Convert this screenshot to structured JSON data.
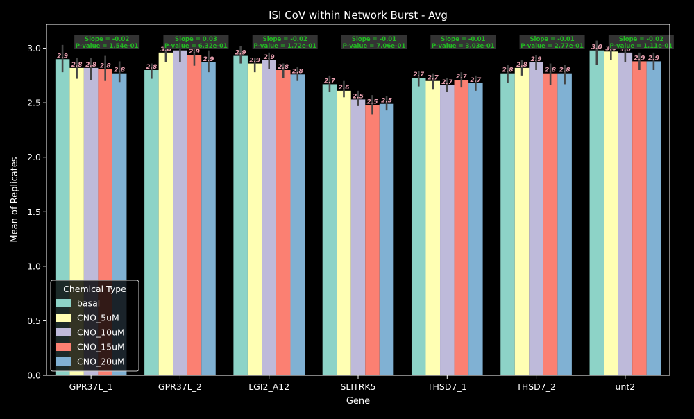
{
  "chart_data": {
    "type": "bar",
    "title": "ISI CoV within Network Burst - Avg",
    "xlabel": "Gene",
    "ylabel": "Mean of Replicates",
    "ylim": [
      0,
      3.22
    ],
    "yticks": [
      0.0,
      0.5,
      1.0,
      1.5,
      2.0,
      2.5,
      3.0
    ],
    "ytick_labels": [
      "0.0",
      "0.5",
      "1.0",
      "1.5",
      "2.0",
      "2.5",
      "3.0"
    ],
    "categories": [
      "GPR37L_1",
      "GPR37L_2",
      "LGI2_A12",
      "SLITRK5",
      "THSD7_1",
      "THSD7_2",
      "unt2"
    ],
    "grid": false,
    "legend": {
      "title": "Chemical Type",
      "placement": "lower-left"
    },
    "series": [
      {
        "name": "basal",
        "color": "#8dd3c7",
        "values": [
          2.9,
          2.8,
          2.93,
          2.67,
          2.73,
          2.77,
          2.98
        ],
        "errors": [
          [
            2.78,
            3.03
          ],
          [
            2.72,
            2.86
          ],
          [
            2.86,
            3.02
          ],
          [
            2.6,
            2.75
          ],
          [
            2.65,
            2.79
          ],
          [
            2.68,
            2.85
          ],
          [
            2.85,
            3.07
          ]
        ],
        "bar_labels": [
          "2.9",
          "2.8",
          "2.9",
          "2.7",
          "2.7",
          "2.8",
          "3.0"
        ]
      },
      {
        "name": "CNO_5uM",
        "color": "#ffffb3",
        "values": [
          2.82,
          2.96,
          2.86,
          2.61,
          2.7,
          2.82,
          2.97
        ],
        "errors": [
          [
            2.72,
            2.91
          ],
          [
            2.87,
            3.04
          ],
          [
            2.78,
            2.91
          ],
          [
            2.55,
            2.7
          ],
          [
            2.62,
            2.77
          ],
          [
            2.75,
            2.89
          ],
          [
            2.89,
            3.04
          ]
        ],
        "bar_labels": [
          "2.8",
          "3.0",
          "2.9",
          "2.6",
          "2.7",
          "2.8",
          "3.0"
        ]
      },
      {
        "name": "CNO_10uM",
        "color": "#bebada",
        "values": [
          2.82,
          2.98,
          2.89,
          2.53,
          2.66,
          2.87,
          2.96
        ],
        "errors": [
          [
            2.71,
            2.91
          ],
          [
            2.87,
            3.07
          ],
          [
            2.81,
            2.96
          ],
          [
            2.47,
            2.61
          ],
          [
            2.6,
            2.73
          ],
          [
            2.8,
            2.94
          ],
          [
            2.87,
            3.04
          ]
        ],
        "bar_labels": [
          "2.8",
          "3.0",
          "2.9",
          "2.5",
          "2.7",
          "2.9",
          "3.0"
        ]
      },
      {
        "name": "CNO_15uM",
        "color": "#fb8072",
        "values": [
          2.81,
          2.94,
          2.8,
          2.48,
          2.71,
          2.77,
          2.88
        ],
        "errors": [
          [
            2.7,
            2.93
          ],
          [
            2.84,
            3.02
          ],
          [
            2.73,
            2.86
          ],
          [
            2.39,
            2.57
          ],
          [
            2.64,
            2.78
          ],
          [
            2.66,
            2.86
          ],
          [
            2.8,
            2.96
          ]
        ],
        "bar_labels": [
          "2.8",
          "2.9",
          "2.8",
          "2.5",
          "2.7",
          "2.8",
          "2.9"
        ]
      },
      {
        "name": "CNO_20uM",
        "color": "#80b1d3",
        "values": [
          2.77,
          2.87,
          2.76,
          2.49,
          2.68,
          2.77,
          2.88
        ],
        "errors": [
          [
            2.69,
            2.88
          ],
          [
            2.78,
            2.98
          ],
          [
            2.7,
            2.83
          ],
          [
            2.43,
            2.56
          ],
          [
            2.61,
            2.75
          ],
          [
            2.67,
            2.85
          ],
          [
            2.8,
            2.96
          ]
        ],
        "bar_labels": [
          "2.8",
          "2.9",
          "2.8",
          "2.5",
          "2.7",
          "2.8",
          "2.9"
        ]
      }
    ],
    "annotations": [
      {
        "category": "GPR37L_1",
        "line1": "Slope = -0.02",
        "line2": "P-value = 1.54e-01"
      },
      {
        "category": "GPR37L_2",
        "line1": "Slope = 0.03",
        "line2": "P-value = 6.32e-01"
      },
      {
        "category": "LGI2_A12",
        "line1": "Slope = -0.02",
        "line2": "P-value = 1.72e-01"
      },
      {
        "category": "SLITRK5",
        "line1": "Slope = -0.01",
        "line2": "P-value = 7.06e-01"
      },
      {
        "category": "THSD7_1",
        "line1": "Slope = -0.01",
        "line2": "P-value = 3.03e-01"
      },
      {
        "category": "THSD7_2",
        "line1": "Slope = -0.01",
        "line2": "P-value = 2.77e-01"
      },
      {
        "category": "unt2",
        "line1": "Slope = -0.02",
        "line2": "P-value = 1.11e-01"
      }
    ]
  }
}
